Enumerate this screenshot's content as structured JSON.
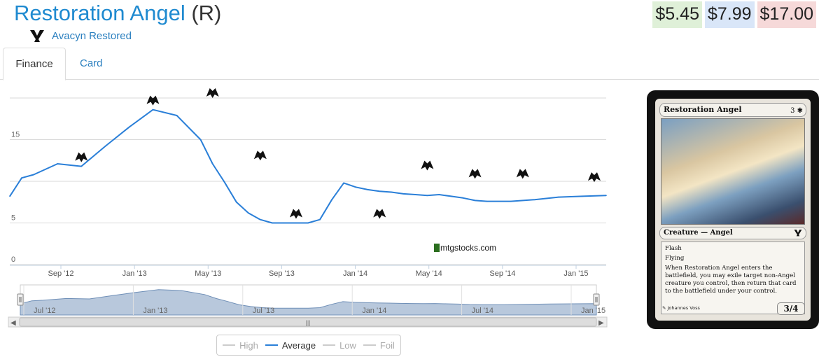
{
  "header": {
    "card_name": "Restoration Angel",
    "rarity": "(R)",
    "set_name": "Avacyn Restored",
    "set_icon": "avacyn-restored-set-icon"
  },
  "prices": {
    "low": "$5.45",
    "average": "$7.99",
    "high": "$17.00",
    "colors": {
      "low": "#dff0d8",
      "average": "#d9e6f8",
      "high": "#f6d9d9"
    }
  },
  "tabs": [
    {
      "label": "Finance",
      "active": true
    },
    {
      "label": "Card",
      "active": false
    }
  ],
  "chart_data": {
    "type": "line",
    "y_ticks": [
      "0",
      "5",
      "15"
    ],
    "ylim": [
      0,
      20
    ],
    "x_ticks": [
      "Sep '12",
      "Jan '13",
      "May '13",
      "Sep '13",
      "Jan '14",
      "May '14",
      "Sep '14",
      "Jan '15"
    ],
    "navigator_ticks": [
      "Jul '12",
      "Jan '13",
      "Jul '13",
      "Jan '14",
      "Jul '14",
      "Jan '15"
    ],
    "watermark": "mtgstocks.com",
    "series": [
      {
        "name": "Average",
        "color": "#2a7fd8",
        "x": [
          0,
          0.02,
          0.04,
          0.08,
          0.12,
          0.16,
          0.2,
          0.24,
          0.28,
          0.32,
          0.34,
          0.36,
          0.38,
          0.4,
          0.42,
          0.44,
          0.46,
          0.48,
          0.5,
          0.52,
          0.54,
          0.56,
          0.58,
          0.6,
          0.62,
          0.64,
          0.66,
          0.68,
          0.7,
          0.72,
          0.74,
          0.76,
          0.78,
          0.8,
          0.84,
          0.88,
          0.92,
          0.96,
          1.0
        ],
        "values": [
          8.2,
          10.4,
          10.8,
          12.1,
          11.8,
          14.2,
          16.5,
          18.6,
          17.9,
          15.0,
          12.1,
          9.9,
          7.5,
          6.2,
          5.4,
          5.0,
          5.0,
          5.0,
          5.0,
          5.4,
          7.8,
          9.8,
          9.3,
          9.0,
          8.8,
          8.7,
          8.5,
          8.4,
          8.3,
          8.4,
          8.2,
          8.0,
          7.7,
          7.6,
          7.6,
          7.8,
          8.1,
          8.2,
          8.3
        ],
        "markers": [
          {
            "x": 0.12,
            "value": 11.8,
            "icon": "dark-ascension-set-icon"
          },
          {
            "x": 0.24,
            "value": 18.6,
            "icon": "avacyn-restored-set-icon"
          },
          {
            "x": 0.34,
            "value": 19.5,
            "icon": "return-to-ravnica-set-icon"
          },
          {
            "x": 0.42,
            "value": 12.0,
            "icon": "magic-2014-set-icon"
          },
          {
            "x": 0.48,
            "value": 5.0,
            "icon": "theros-set-icon"
          },
          {
            "x": 0.62,
            "value": 5.0,
            "icon": "born-of-the-gods-set-icon"
          },
          {
            "x": 0.7,
            "value": 10.8,
            "icon": "journey-into-nyx-set-icon"
          },
          {
            "x": 0.78,
            "value": 9.8,
            "icon": "magic-2015-set-icon"
          },
          {
            "x": 0.86,
            "value": 9.8,
            "icon": "khans-of-tarkir-set-icon"
          },
          {
            "x": 0.98,
            "value": 9.4,
            "icon": "fate-reforged-set-icon"
          }
        ]
      }
    ]
  },
  "legend": [
    {
      "label": "High",
      "active": false
    },
    {
      "label": "Average",
      "active": true
    },
    {
      "label": "Low",
      "active": false
    },
    {
      "label": "Foil",
      "active": false
    }
  ],
  "card_image": {
    "title": "Restoration Angel",
    "mana_cost": "3 ✱",
    "type_line": "Creature — Angel",
    "set_symbol": "avacyn-restored-set-icon",
    "rules": [
      "Flash",
      "Flying",
      "When Restoration Angel enters the battlefield, you may exile target non-Angel creature you control, then return that card to the battlefield under your control."
    ],
    "pt": "3/4",
    "artist": "Johannes Voss"
  }
}
